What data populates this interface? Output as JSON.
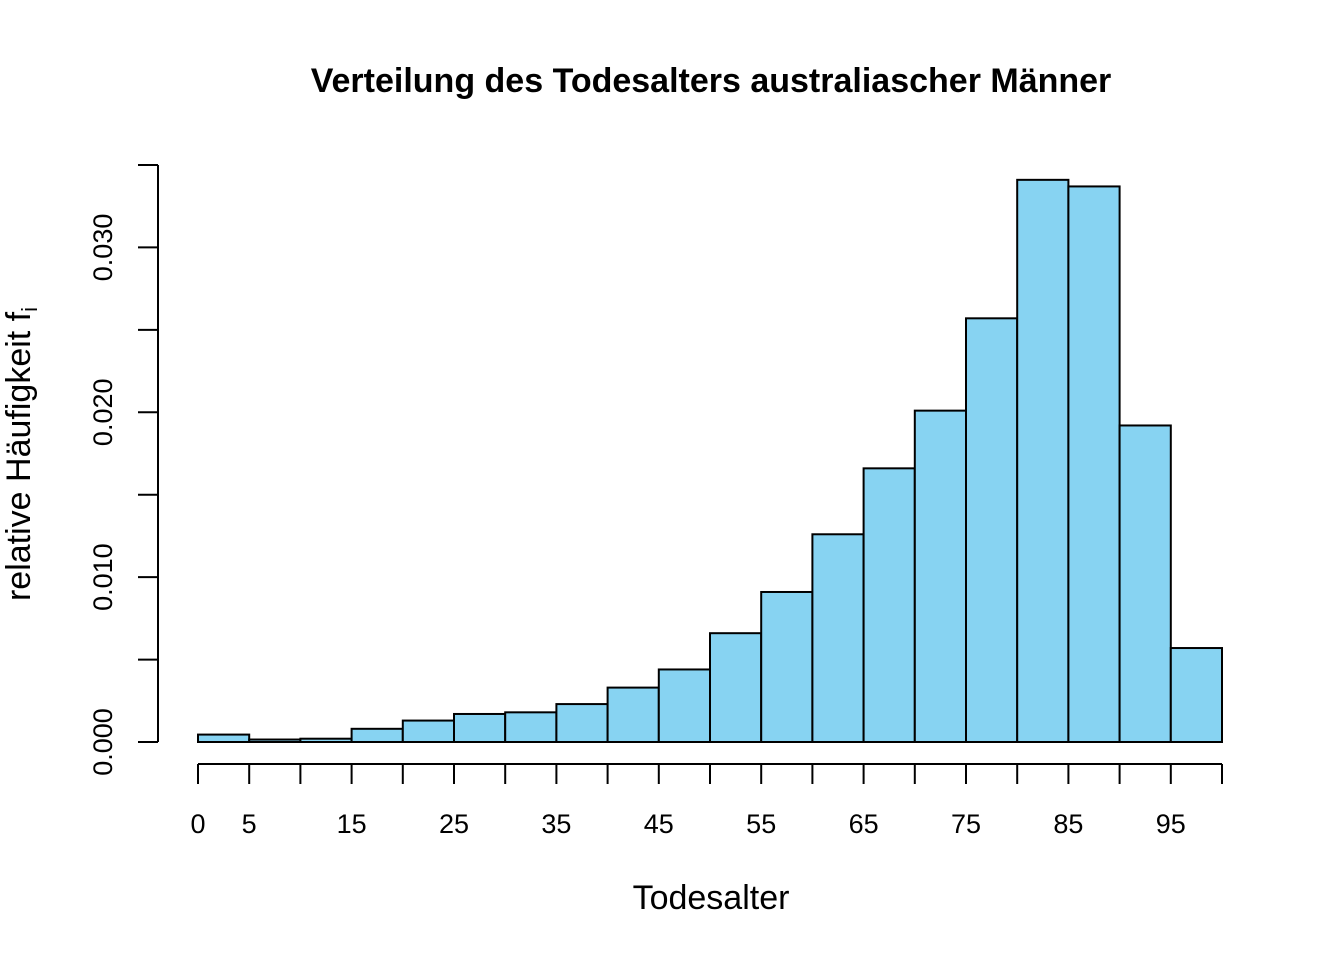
{
  "chart_data": {
    "type": "bar",
    "title": "Verteilung des Todesalters australiascher Männer",
    "xlabel": "Todesalter",
    "ylabel": "relative Häufigkeit f",
    "ylabel_subscript": "i",
    "bar_color": "#87d3f2",
    "bin_width": 5,
    "bins": [
      {
        "from": 0,
        "to": 5,
        "value": 0.00045
      },
      {
        "from": 5,
        "to": 10,
        "value": 0.00015
      },
      {
        "from": 10,
        "to": 15,
        "value": 0.0002
      },
      {
        "from": 15,
        "to": 20,
        "value": 0.0008
      },
      {
        "from": 20,
        "to": 25,
        "value": 0.0013
      },
      {
        "from": 25,
        "to": 30,
        "value": 0.0017
      },
      {
        "from": 30,
        "to": 35,
        "value": 0.0018
      },
      {
        "from": 35,
        "to": 40,
        "value": 0.0023
      },
      {
        "from": 40,
        "to": 45,
        "value": 0.0033
      },
      {
        "from": 45,
        "to": 50,
        "value": 0.0044
      },
      {
        "from": 50,
        "to": 55,
        "value": 0.0066
      },
      {
        "from": 55,
        "to": 60,
        "value": 0.0091
      },
      {
        "from": 60,
        "to": 65,
        "value": 0.0126
      },
      {
        "from": 65,
        "to": 70,
        "value": 0.0166
      },
      {
        "from": 70,
        "to": 75,
        "value": 0.0201
      },
      {
        "from": 75,
        "to": 80,
        "value": 0.0257
      },
      {
        "from": 80,
        "to": 85,
        "value": 0.0341
      },
      {
        "from": 85,
        "to": 90,
        "value": 0.0337
      },
      {
        "from": 90,
        "to": 95,
        "value": 0.0192
      },
      {
        "from": 95,
        "to": 100,
        "value": 0.0057
      }
    ],
    "x_ticks": [
      0,
      5,
      10,
      15,
      20,
      25,
      30,
      35,
      40,
      45,
      50,
      55,
      60,
      65,
      70,
      75,
      80,
      85,
      90,
      95,
      100
    ],
    "x_tick_labels": [
      "0",
      "5",
      "15",
      "25",
      "35",
      "45",
      "55",
      "65",
      "75",
      "85",
      "95"
    ],
    "x_tick_label_values": [
      0,
      5,
      15,
      25,
      35,
      45,
      55,
      65,
      75,
      85,
      95
    ],
    "y_ticks": [
      0,
      0.005,
      0.01,
      0.015,
      0.02,
      0.025,
      0.03,
      0.035
    ],
    "y_tick_labels": [
      "0.000",
      "0.010",
      "0.020",
      "0.030"
    ],
    "y_tick_label_values": [
      0,
      0.01,
      0.02,
      0.03
    ],
    "xlim": [
      0,
      100
    ],
    "ylim": [
      0,
      0.035
    ],
    "grid": false
  }
}
